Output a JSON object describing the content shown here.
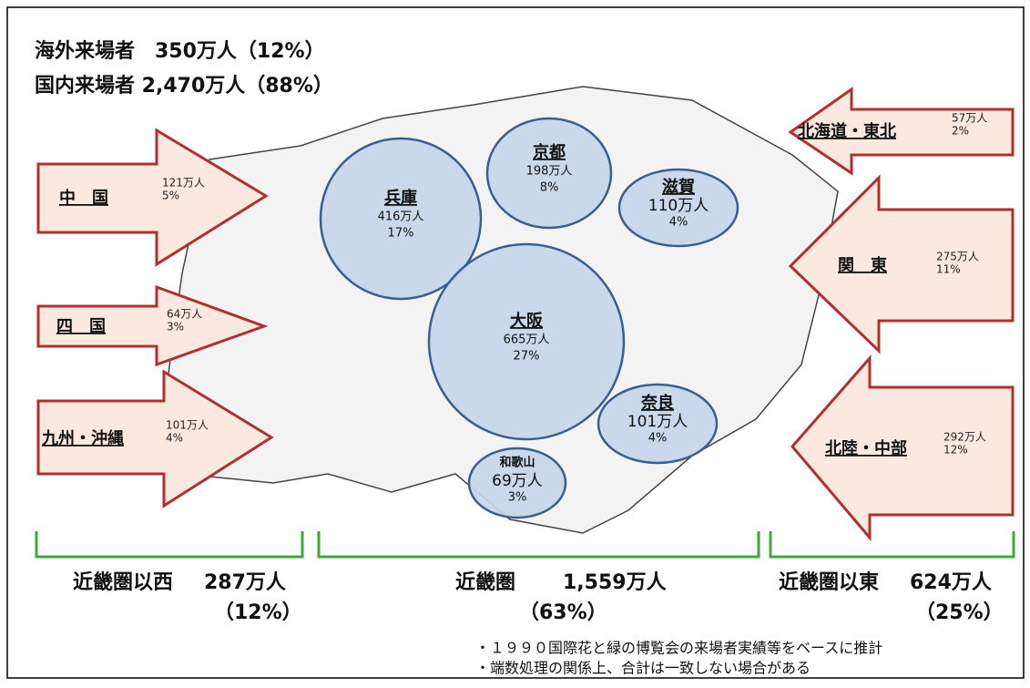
{
  "header": {
    "overseas": "海外来場者　350万人（12%）",
    "domestic": "国内来場者 2,470万人（88%）"
  },
  "circles": [
    {
      "name": "兵庫",
      "visitors": "416万人",
      "share": "17%"
    },
    {
      "name": "京都",
      "visitors": "198万人",
      "share": "8%"
    },
    {
      "name": "滋賀",
      "visitors": "110万人",
      "share": "4%"
    },
    {
      "name": "大阪",
      "visitors": "665万人",
      "share": "27%"
    },
    {
      "name": "奈良",
      "visitors": "101万人",
      "share": "4%"
    },
    {
      "name": "和歌山",
      "visitors": "69万人",
      "share": "3%"
    }
  ],
  "arrows": [
    {
      "name": "中　国",
      "visitors": "121万人",
      "share": "5%"
    },
    {
      "name": "四　国",
      "visitors": "64万人",
      "share": "3%"
    },
    {
      "name": "九州・沖縄",
      "visitors": "101万人",
      "share": "4%"
    },
    {
      "name": "北海道・東北",
      "visitors": "57万人",
      "share": "2%"
    },
    {
      "name": "関　東",
      "visitors": "275万人",
      "share": "11%"
    },
    {
      "name": "北陸・中部",
      "visitors": "292万人",
      "share": "12%"
    }
  ],
  "regions": [
    {
      "name": "近畿圏以西",
      "visitors": "287万人",
      "share": "（12%）"
    },
    {
      "name": "近畿圏",
      "visitors": "1,559万人",
      "share": "（63%）"
    },
    {
      "name": "近畿圏以東",
      "visitors": "624万人",
      "share": "（25%）"
    }
  ],
  "notes": [
    "・１９９０国際花と緑の博覧会の来場者実績等をベースに推計",
    "・端数処理の関係上、合計は一致しない場合がある"
  ]
}
